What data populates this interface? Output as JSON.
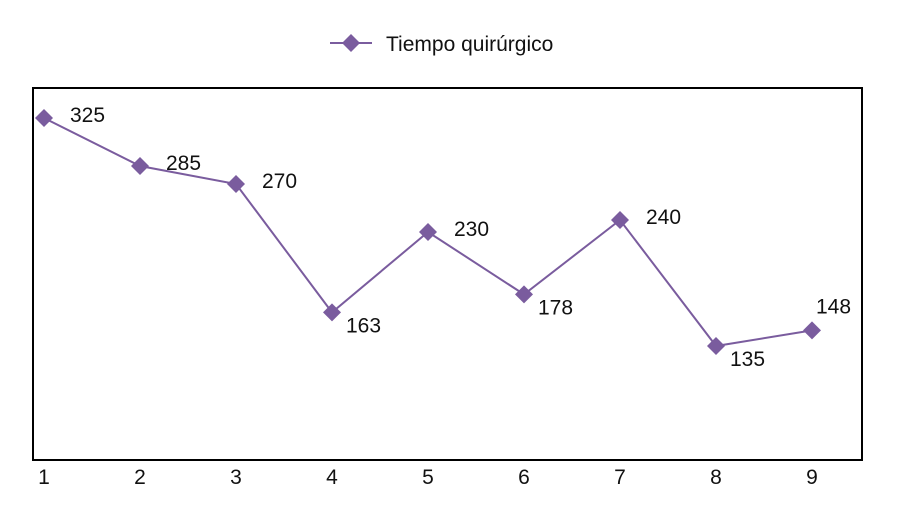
{
  "chart_data": {
    "type": "line",
    "x": [
      "1",
      "2",
      "3",
      "4",
      "5",
      "6",
      "7",
      "8",
      "9"
    ],
    "series": [
      {
        "name": "Tiempo quirúrgico",
        "values": [
          325,
          285,
          270,
          163,
          230,
          178,
          240,
          135,
          148
        ]
      }
    ],
    "data_labels": [
      "325",
      "285",
      "270",
      "163",
      "230",
      "178",
      "240",
      "135",
      "148"
    ],
    "ylim": [
      40,
      350
    ],
    "y_axis_visible": false,
    "grid": false,
    "legend_position": "top-center",
    "marker": "diamond",
    "series_color": "#7a5c9e"
  }
}
